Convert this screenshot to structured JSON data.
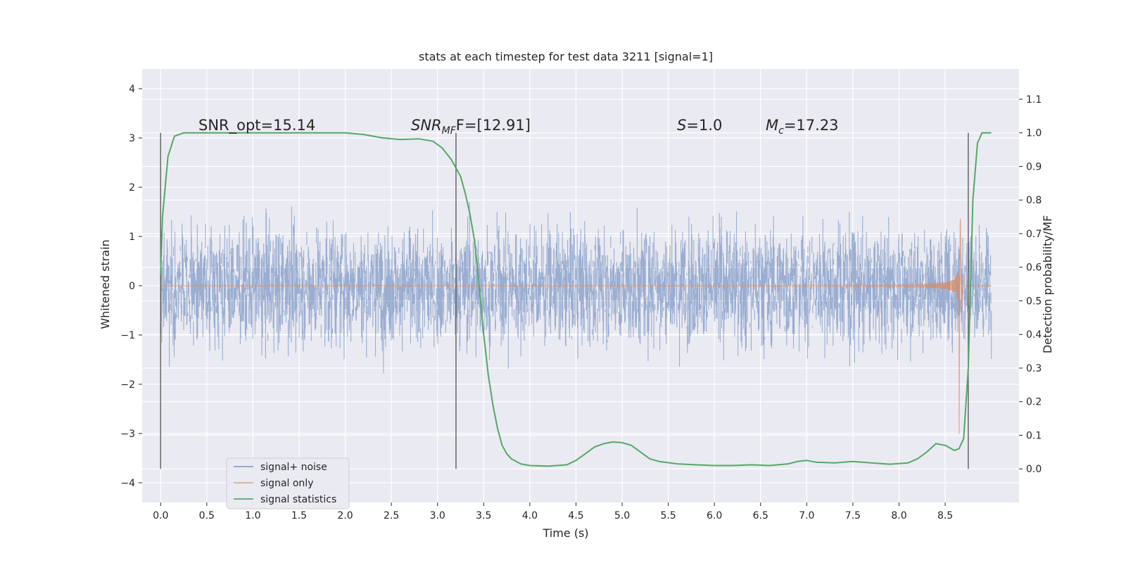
{
  "chart_data": {
    "type": "line",
    "title": "stats at each timestep for test data 3211 [signal=1]",
    "xlabel": "Time (s)",
    "ylabel": "Whitened strain",
    "y2label": "Detection probability/MF",
    "xlim": [
      -0.2,
      9.3
    ],
    "ylim": [
      -4.4,
      4.4
    ],
    "y2lim": [
      -0.1,
      1.19
    ],
    "x_ticks": [
      "0.0",
      "0.5",
      "1.0",
      "1.5",
      "2.0",
      "2.5",
      "3.0",
      "3.5",
      "4.0",
      "4.5",
      "5.0",
      "5.5",
      "6.0",
      "6.5",
      "7.0",
      "7.5",
      "8.0",
      "8.5"
    ],
    "y_ticks": [
      "−4",
      "−3",
      "−2",
      "−1",
      "0",
      "1",
      "2",
      "3",
      "4"
    ],
    "y2_ticks": [
      "0.0",
      "0.1",
      "0.2",
      "0.3",
      "0.4",
      "0.5",
      "0.6",
      "0.7",
      "0.8",
      "0.9",
      "1.0",
      "1.1"
    ],
    "grid": true,
    "legend_position": "lower-left",
    "colors": {
      "signal_noise": "#4c72b0",
      "signal_only": "#dd8452",
      "signal_statistics": "#55a868",
      "vline": "#444444",
      "background": "#eaeaf2"
    },
    "annotations": {
      "snr_opt": "SNR_opt=15.14",
      "snr_mf_italic": "SNR",
      "snr_mf_sub": "MF",
      "snr_mf_rest": "F=[12.91]",
      "s_italic": "S",
      "s_rest": "=1.0",
      "mc_italic": "M",
      "mc_sub": "c",
      "mc_rest": "=17.23"
    },
    "vlines_x": [
      0.0,
      3.2,
      8.75
    ],
    "series": [
      {
        "name": "signal+ noise",
        "description_range": {
          "x_start": 0.0,
          "x_end": 9.0
        }
      },
      {
        "name": "signal only",
        "description_range": {
          "x_start": 0.0,
          "x_end": 9.0
        }
      },
      {
        "name": "signal statistics",
        "axis": "right",
        "x": [
          0.0,
          0.02,
          0.08,
          0.15,
          0.25,
          0.4,
          0.6,
          1.0,
          1.5,
          2.0,
          2.2,
          2.4,
          2.6,
          2.8,
          2.95,
          3.05,
          3.15,
          3.25,
          3.3,
          3.35,
          3.4,
          3.45,
          3.5,
          3.55,
          3.6,
          3.65,
          3.7,
          3.75,
          3.8,
          3.9,
          4.0,
          4.2,
          4.4,
          4.5,
          4.6,
          4.7,
          4.8,
          4.9,
          5.0,
          5.1,
          5.2,
          5.3,
          5.4,
          5.6,
          5.8,
          6.0,
          6.2,
          6.4,
          6.6,
          6.8,
          6.9,
          7.0,
          7.1,
          7.3,
          7.5,
          7.7,
          7.9,
          8.1,
          8.2,
          8.3,
          8.4,
          8.5,
          8.6,
          8.65,
          8.7,
          8.75,
          8.8,
          8.85,
          8.9,
          9.0
        ],
        "y": [
          0.58,
          0.75,
          0.93,
          0.99,
          1.0,
          1.0,
          1.0,
          1.0,
          1.0,
          1.0,
          0.995,
          0.985,
          0.98,
          0.982,
          0.975,
          0.955,
          0.92,
          0.87,
          0.82,
          0.76,
          0.68,
          0.55,
          0.4,
          0.28,
          0.19,
          0.12,
          0.07,
          0.045,
          0.03,
          0.015,
          0.01,
          0.008,
          0.012,
          0.025,
          0.045,
          0.065,
          0.075,
          0.08,
          0.078,
          0.07,
          0.05,
          0.03,
          0.022,
          0.015,
          0.012,
          0.01,
          0.01,
          0.012,
          0.01,
          0.015,
          0.022,
          0.025,
          0.02,
          0.018,
          0.022,
          0.018,
          0.014,
          0.018,
          0.03,
          0.05,
          0.075,
          0.07,
          0.055,
          0.06,
          0.09,
          0.3,
          0.8,
          0.97,
          1.0,
          1.0
        ]
      }
    ]
  }
}
